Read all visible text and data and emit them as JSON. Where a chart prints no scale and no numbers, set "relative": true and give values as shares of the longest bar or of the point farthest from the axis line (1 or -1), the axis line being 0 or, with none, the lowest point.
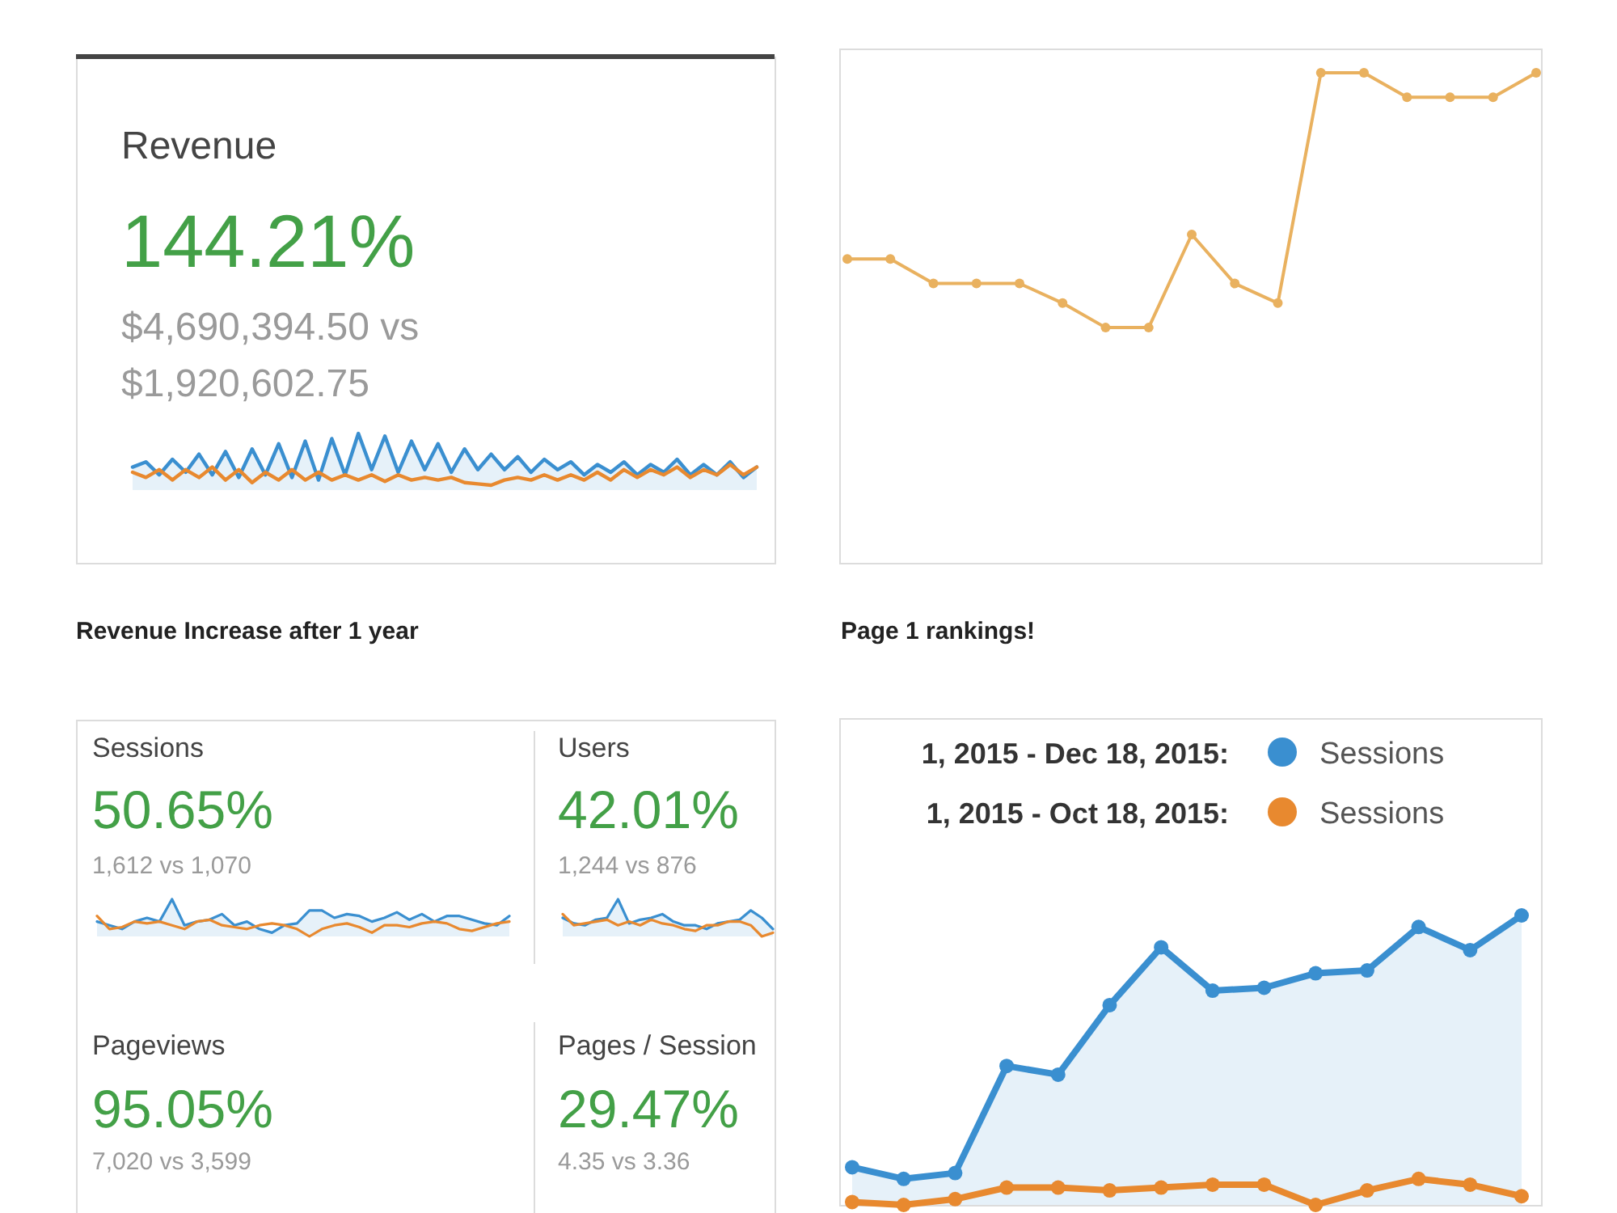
{
  "chart_data": [
    {
      "type": "line",
      "title": "Revenue",
      "subtitle": "144.21%",
      "annotations": [
        "$4,690,394.50 vs $1,920,602.75",
        "Revenue Increase after 1 year"
      ],
      "relative": true,
      "categories": [
        null,
        null,
        null,
        null,
        null,
        null,
        null,
        null,
        null,
        null,
        null,
        null,
        null,
        null,
        null,
        null,
        null,
        null,
        null,
        null,
        null,
        null,
        null,
        null,
        null,
        null,
        null,
        null,
        null,
        null,
        null,
        null,
        null,
        null,
        null,
        null,
        null,
        null,
        null,
        null,
        null,
        null,
        null,
        null,
        null,
        null,
        null,
        null
      ],
      "series": [
        {
          "type": "area",
          "color": "#3a8fd0",
          "values": [
            0.74,
            0.78,
            0.68,
            0.8,
            0.7,
            0.84,
            0.68,
            0.86,
            0.66,
            0.88,
            0.68,
            0.92,
            0.66,
            0.94,
            0.64,
            0.96,
            0.68,
            1,
            0.72,
            0.98,
            0.7,
            0.94,
            0.72,
            0.92,
            0.7,
            0.88,
            0.72,
            0.84,
            0.72,
            0.82,
            0.7,
            0.8,
            0.72,
            0.78,
            0.68,
            0.76,
            0.7,
            0.78,
            0.68,
            0.76,
            0.7,
            0.8,
            0.68,
            0.76,
            0.68,
            0.78,
            0.66,
            0.74
          ]
        },
        {
          "type": "line",
          "color": "#e8892f",
          "values": [
            0.7,
            0.66,
            0.72,
            0.64,
            0.72,
            0.66,
            0.74,
            0.64,
            0.72,
            0.62,
            0.7,
            0.64,
            0.72,
            0.64,
            0.7,
            0.64,
            0.68,
            0.64,
            0.68,
            0.63,
            0.68,
            0.64,
            0.66,
            0.64,
            0.66,
            0.62,
            0.61,
            0.6,
            0.64,
            0.66,
            0.64,
            0.68,
            0.64,
            0.68,
            0.64,
            0.7,
            0.64,
            0.72,
            0.66,
            0.72,
            0.68,
            0.74,
            0.66,
            0.72,
            0.68,
            0.76,
            0.68,
            0.74
          ]
        }
      ]
    },
    {
      "type": "line",
      "annotations": [
        "Page 1 rankings!"
      ],
      "relative": true,
      "marker": "circle",
      "categories": [
        null,
        null,
        null,
        null,
        null,
        null,
        null,
        null,
        null,
        null,
        null,
        null,
        null,
        null,
        null,
        null,
        null
      ],
      "series": [
        {
          "color": "#e9b15f",
          "values": [
            0.62,
            0.62,
            0.57,
            0.57,
            0.57,
            0.53,
            0.48,
            0.48,
            0.67,
            0.57,
            0.53,
            1,
            1,
            0.95,
            0.95,
            0.95,
            1
          ]
        }
      ]
    },
    {
      "type": "line",
      "title": "Sessions",
      "subtitle": "50.65%",
      "annotations": [
        "1,612 vs 1,070"
      ],
      "relative": true,
      "categories": [
        null,
        null,
        null,
        null,
        null,
        null,
        null,
        null,
        null,
        null,
        null,
        null,
        null,
        null,
        null,
        null,
        null,
        null,
        null,
        null,
        null,
        null,
        null,
        null,
        null,
        null,
        null,
        null,
        null,
        null,
        null,
        null,
        null,
        null
      ],
      "series": [
        {
          "type": "area",
          "color": "#3a8fd0",
          "values": [
            0.4,
            0.3,
            0.2,
            0.4,
            0.5,
            0.4,
            1.0,
            0.3,
            0.4,
            0.45,
            0.6,
            0.3,
            0.4,
            0.2,
            0.1,
            0.3,
            0.35,
            0.7,
            0.7,
            0.5,
            0.6,
            0.55,
            0.4,
            0.5,
            0.65,
            0.45,
            0.6,
            0.4,
            0.55,
            0.55,
            0.45,
            0.35,
            0.3,
            0.55
          ]
        },
        {
          "type": "line",
          "color": "#e8892f",
          "values": [
            0.55,
            0.2,
            0.25,
            0.4,
            0.35,
            0.4,
            0.3,
            0.2,
            0.4,
            0.45,
            0.3,
            0.25,
            0.2,
            0.3,
            0.35,
            0.3,
            0.2,
            0.0,
            0.2,
            0.3,
            0.35,
            0.25,
            0.1,
            0.3,
            0.3,
            0.25,
            0.35,
            0.4,
            0.35,
            0.2,
            0.15,
            0.25,
            0.35,
            0.4
          ]
        }
      ]
    },
    {
      "type": "line",
      "title": "Users",
      "subtitle": "42.01%",
      "annotations": [
        "1,244 vs 876"
      ],
      "relative": true,
      "categories": [
        null,
        null,
        null,
        null,
        null,
        null,
        null,
        null,
        null,
        null,
        null,
        null,
        null,
        null,
        null,
        null,
        null,
        null,
        null,
        null
      ],
      "series": [
        {
          "type": "area",
          "color": "#3a8fd0",
          "values": [
            0.5,
            0.35,
            0.3,
            0.45,
            0.5,
            1.0,
            0.35,
            0.45,
            0.5,
            0.6,
            0.4,
            0.3,
            0.3,
            0.2,
            0.35,
            0.4,
            0.45,
            0.7,
            0.5,
            0.2
          ]
        },
        {
          "type": "line",
          "color": "#e8892f",
          "values": [
            0.6,
            0.3,
            0.35,
            0.4,
            0.45,
            0.3,
            0.4,
            0.3,
            0.45,
            0.35,
            0.3,
            0.2,
            0.15,
            0.3,
            0.3,
            0.4,
            0.4,
            0.3,
            0.0,
            0.1
          ]
        }
      ]
    },
    {
      "type": "other",
      "title": "Pageviews",
      "subtitle": "95.05%",
      "annotations": [
        "7,020 vs 3,599"
      ]
    },
    {
      "type": "other",
      "title": "Pages / Session",
      "subtitle": "29.47%",
      "annotations": [
        "4.35 vs 3.36"
      ]
    },
    {
      "type": "line",
      "annotations": [
        "1, 2015 - Dec 18, 2015:",
        "1, 2015 - Oct 18, 2015:"
      ],
      "relative": true,
      "marker": "circle",
      "legend": "top",
      "categories": [
        null,
        null,
        null,
        null,
        null,
        null,
        null,
        null,
        null,
        null,
        null,
        null,
        null,
        null
      ],
      "series": [
        {
          "type": "area",
          "name": "Sessions",
          "color": "#3a8fd0",
          "values": [
            0.13,
            0.09,
            0.11,
            0.48,
            0.45,
            0.69,
            0.89,
            0.74,
            0.75,
            0.8,
            0.81,
            0.96,
            0.88,
            1
          ]
        },
        {
          "type": "line",
          "name": "Sessions",
          "color": "#e8892f",
          "values": [
            0.01,
            0,
            0.02,
            0.06,
            0.06,
            0.05,
            0.06,
            0.07,
            0.07,
            0,
            0.05,
            0.09,
            0.07,
            0.03
          ]
        }
      ]
    }
  ]
}
